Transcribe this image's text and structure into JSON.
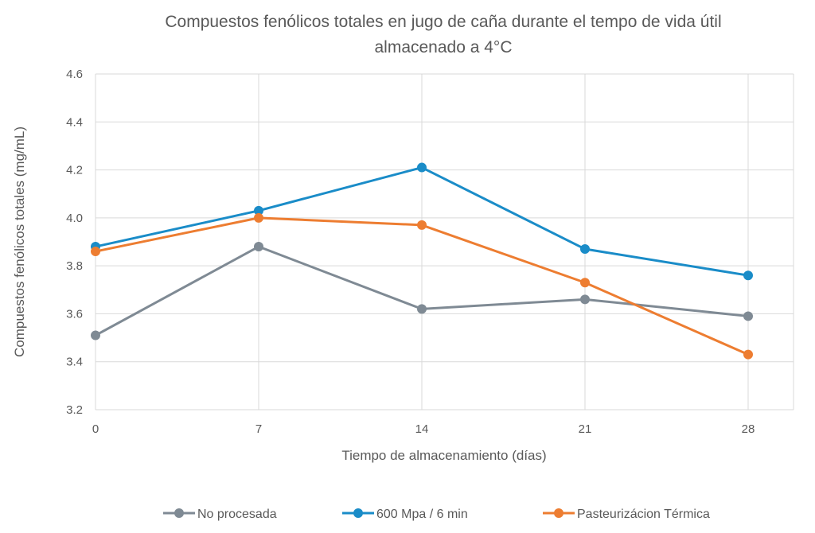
{
  "chart_data": {
    "type": "line",
    "title_lines": [
      "Compuestos fenólicos totales en jugo de caña durante el tempo de vida útil",
      "almacenado a 4°C"
    ],
    "xlabel": "Tiempo de almacenamiento (días)",
    "ylabel": "Compuestos fenólicos totales (mg/mL)",
    "x": [
      0,
      7,
      14,
      21,
      28
    ],
    "x_tick_labels": [
      "0",
      "7",
      "14",
      "21",
      "28"
    ],
    "ylim": [
      3.2,
      4.6
    ],
    "y_ticks": [
      3.2,
      3.4,
      3.6,
      3.8,
      4.0,
      4.2,
      4.4,
      4.6
    ],
    "y_tick_labels": [
      "3.2",
      "3.4",
      "3.6",
      "3.8",
      "4.0",
      "4.2",
      "4.4",
      "4.6"
    ],
    "grid": true,
    "legend_position": "bottom",
    "series": [
      {
        "name": "No procesada",
        "color": "#7f8a94",
        "values": [
          3.51,
          3.88,
          3.62,
          3.66,
          3.59
        ]
      },
      {
        "name": "600 Mpa / 6 min",
        "color": "#1a8cc8",
        "values": [
          3.88,
          4.03,
          4.21,
          3.87,
          3.76
        ]
      },
      {
        "name": "Pasteurizácion Térmica",
        "color": "#ed7d31",
        "values": [
          3.86,
          4.0,
          3.97,
          3.73,
          3.43
        ]
      }
    ]
  }
}
